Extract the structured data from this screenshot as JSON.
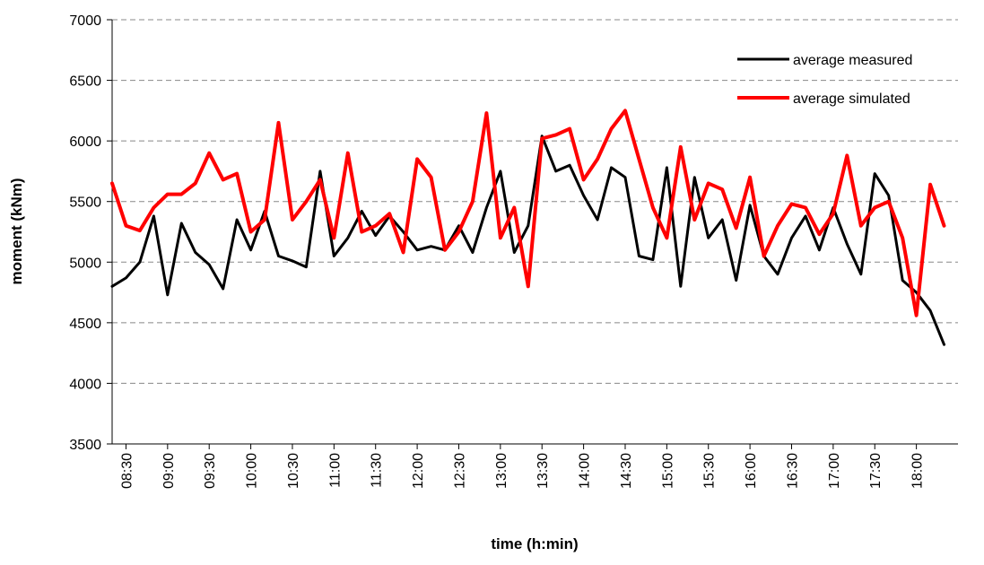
{
  "chart_data": {
    "type": "line",
    "x_label": "time (h:min)",
    "y_label": "moment (kNm)",
    "categories": [
      null,
      "08:30",
      null,
      null,
      "09:00",
      null,
      null,
      "09:30",
      null,
      null,
      "10:00",
      null,
      null,
      "10:30",
      null,
      null,
      "11:00",
      null,
      null,
      "11:30",
      null,
      null,
      "12:00",
      null,
      null,
      "12:30",
      null,
      null,
      "13:00",
      null,
      null,
      "13:30",
      null,
      null,
      "14:00",
      null,
      null,
      "14:30",
      null,
      null,
      "15:00",
      null,
      null,
      "15:30",
      null,
      null,
      "16:00",
      null,
      null,
      "16:30",
      null,
      null,
      "17:00",
      null,
      null,
      "17:30",
      null,
      null,
      "18:00",
      null,
      null
    ],
    "series": [
      {
        "name": "average measured",
        "color": "#000000",
        "width": 3,
        "values": [
          4800,
          4870,
          5000,
          5380,
          4730,
          5320,
          5080,
          4980,
          4780,
          5350,
          5100,
          5420,
          5050,
          5010,
          4960,
          5750,
          5050,
          5200,
          5420,
          5220,
          5380,
          5250,
          5100,
          5130,
          5100,
          5300,
          5080,
          5450,
          5750,
          5080,
          5300,
          6040,
          5750,
          5800,
          5550,
          5350,
          5780,
          5700,
          5050,
          5020,
          5780,
          4800,
          5700,
          5200,
          5350,
          4850,
          5470,
          5050,
          4900,
          5200,
          5380,
          5100,
          5450,
          5150,
          4900,
          5730,
          5550,
          4850,
          4750,
          4600,
          4320
        ]
      },
      {
        "name": "average simulated",
        "color": "#ff0000",
        "width": 4,
        "values": [
          5650,
          5300,
          5260,
          5450,
          5560,
          5560,
          5650,
          5900,
          5680,
          5730,
          5250,
          5350,
          6150,
          5350,
          5500,
          5680,
          5200,
          5900,
          5250,
          5300,
          5400,
          5080,
          5850,
          5700,
          5100,
          5250,
          5500,
          6230,
          5200,
          5450,
          4800,
          6020,
          6050,
          6100,
          5680,
          5850,
          6100,
          6250,
          5850,
          5450,
          5200,
          5950,
          5350,
          5650,
          5600,
          5280,
          5700,
          5050,
          5300,
          5480,
          5450,
          5230,
          5400,
          5880,
          5300,
          5450,
          5500,
          5200,
          4560,
          5640,
          5300
        ]
      }
    ],
    "ylim": [
      3500,
      7000
    ],
    "yticks": [
      3500,
      4000,
      4500,
      5000,
      5500,
      6000,
      6500,
      7000
    ],
    "grid": true,
    "legend": "top-right"
  }
}
